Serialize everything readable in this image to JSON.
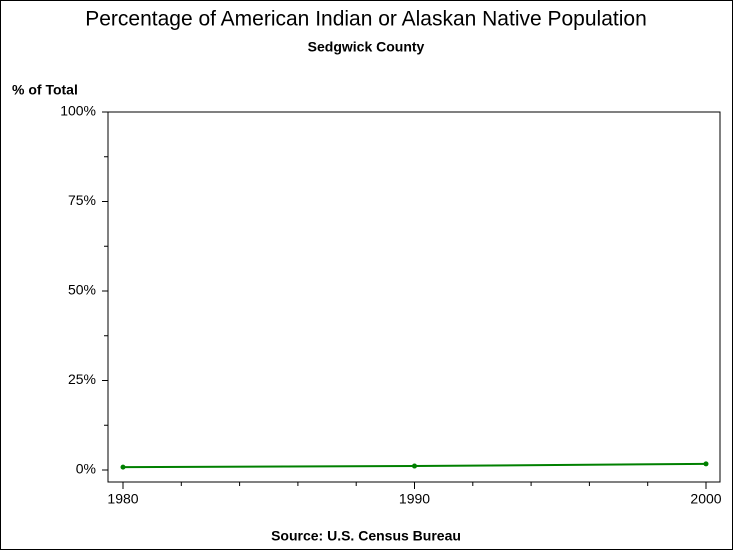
{
  "chart_data": {
    "type": "line",
    "title": "Percentage of American Indian or Alaskan Native Population",
    "subtitle": "Sedgwick County",
    "y_label": "% of Total",
    "source": "Source: U.S. Census Bureau",
    "x": [
      1980,
      1990,
      2000
    ],
    "series": [
      {
        "color": "#008000",
        "values": [
          0.8,
          1.1,
          1.7
        ]
      }
    ],
    "xlim": [
      1980,
      2000
    ],
    "xticks": [
      1980,
      1990,
      2000
    ],
    "ylim": [
      0,
      100
    ],
    "yticks": [
      {
        "value": 0,
        "label": "0%"
      },
      {
        "value": 25,
        "label": "25%"
      },
      {
        "value": 50,
        "label": "50%"
      },
      {
        "value": 75,
        "label": "75%"
      },
      {
        "value": 100,
        "label": "100%"
      }
    ]
  }
}
